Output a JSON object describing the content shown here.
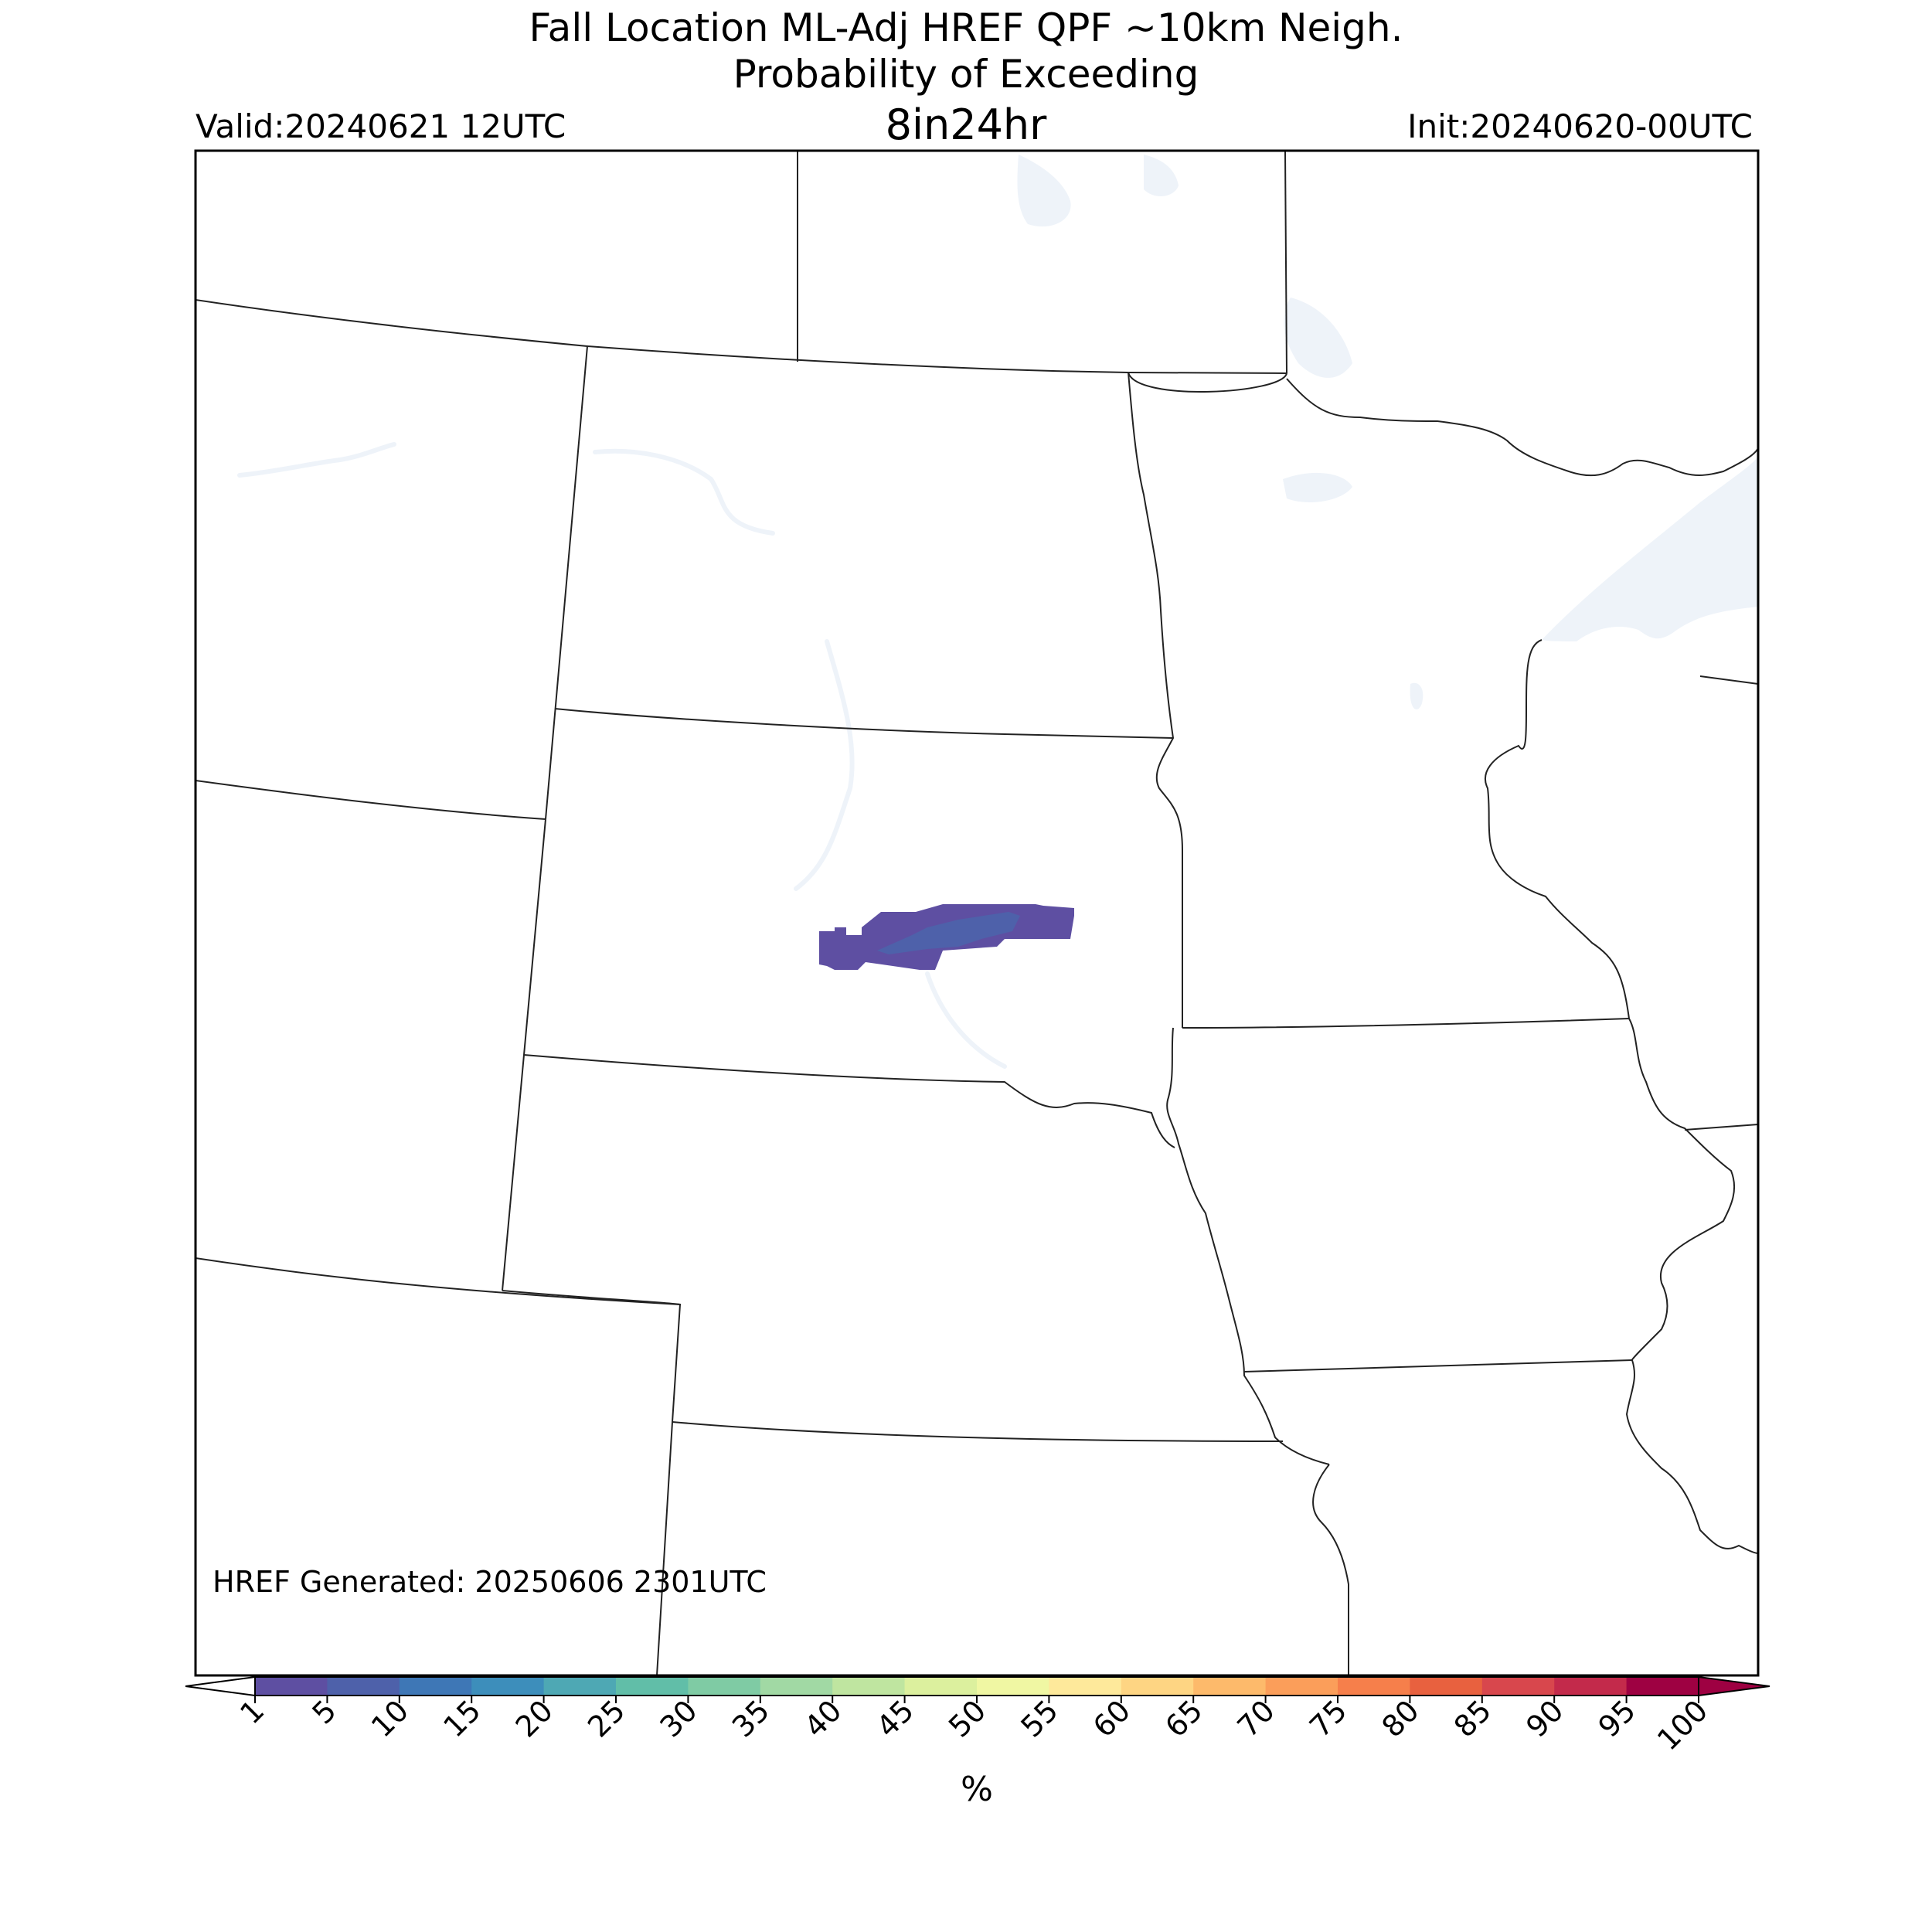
{
  "header": {
    "title_line1": "Fall Location ML-Adj HREF QPF ~10km Neigh.",
    "title_line2": "Probability of Exceeding",
    "title_line3": "8in24hr",
    "valid": "Valid:20240621 12UTC",
    "init": "Init:20240620-00UTC"
  },
  "map": {
    "footer_note": "HREF Generated: 20250606 2301UTC",
    "probability_area": {
      "level_outer": "1-5 %",
      "level_inner": "5-10 %"
    }
  },
  "colorbar": {
    "unit_label": "%",
    "ticks": [
      "1",
      "5",
      "10",
      "15",
      "20",
      "25",
      "30",
      "35",
      "40",
      "45",
      "50",
      "55",
      "60",
      "65",
      "70",
      "75",
      "80",
      "85",
      "90",
      "95",
      "100"
    ],
    "colors": [
      "#5e4fa2",
      "#4e61aa",
      "#3e77b6",
      "#3d8ebb",
      "#4ea8b4",
      "#61bea8",
      "#7fcba4",
      "#a1d9a4",
      "#bfe5a0",
      "#dcf09e",
      "#f0f7a3",
      "#fee99b",
      "#fed583",
      "#fdba6b",
      "#fb9e5a",
      "#f67f4b",
      "#e8613f",
      "#d8474d",
      "#c32a4b",
      "#9e0142"
    ]
  }
}
